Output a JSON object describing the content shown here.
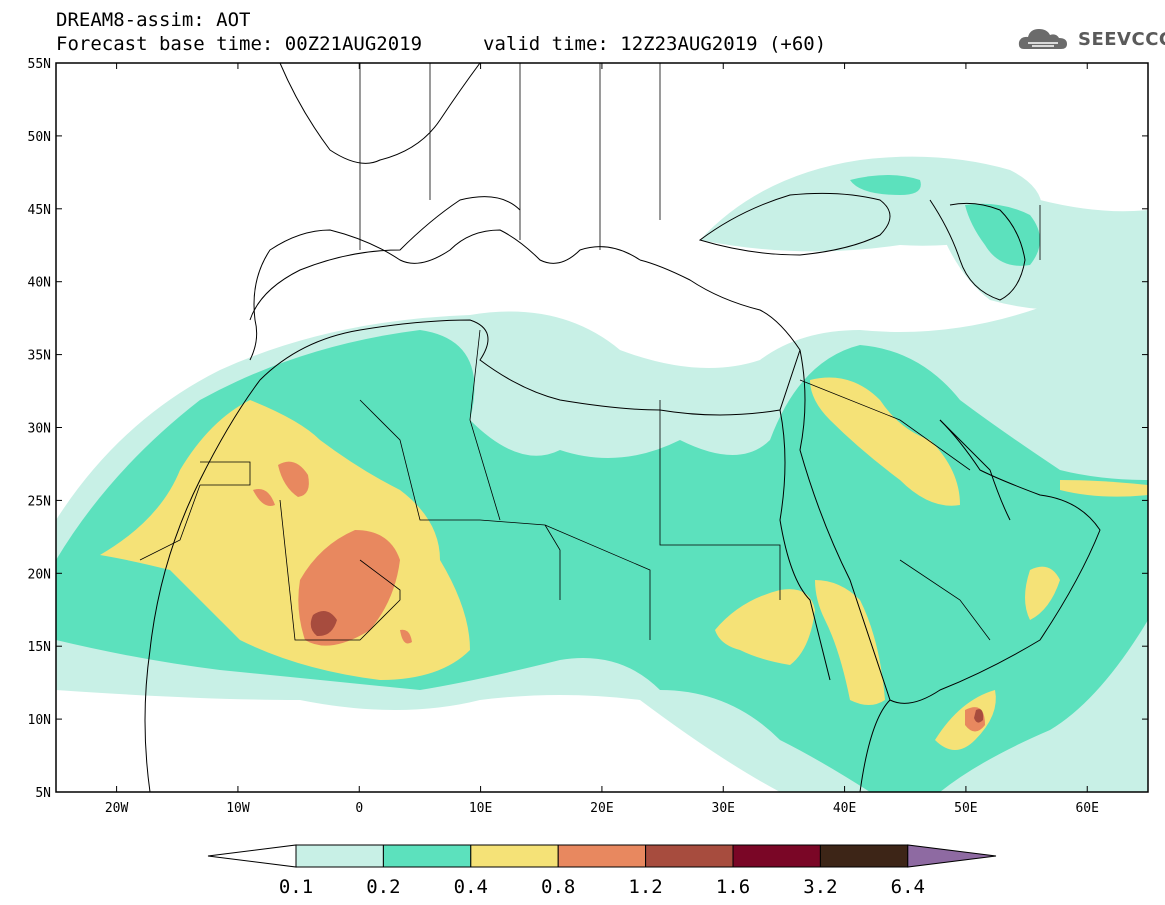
{
  "header": {
    "title": "DREAM8-assim: AOT",
    "base_time": "Forecast base time: 00Z21AUG2019",
    "valid_time": "valid time: 12Z23AUG2019 (+60)"
  },
  "logo": {
    "text": "SEEVCCC",
    "icon": "cloud-icon"
  },
  "map": {
    "lat_labels": [
      "55N",
      "50N",
      "45N",
      "40N",
      "35N",
      "30N",
      "25N",
      "20N",
      "15N",
      "10N",
      "5N"
    ],
    "lon_labels": [
      "20W",
      "10W",
      "0",
      "10E",
      "20E",
      "30E",
      "40E",
      "50E",
      "60E"
    ]
  },
  "colorbar": {
    "labels": [
      "0.1",
      "0.2",
      "0.4",
      "0.8",
      "1.2",
      "1.6",
      "3.2",
      "6.4"
    ],
    "colors": [
      "#ffffff",
      "#c8f0e6",
      "#5ce1bd",
      "#f5e277",
      "#e8885f",
      "#a74c3e",
      "#7a0626",
      "#3d2517",
      "#8e6aa2"
    ]
  }
}
